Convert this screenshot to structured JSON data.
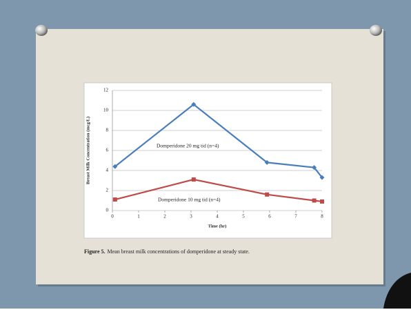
{
  "chart_data": {
    "type": "line",
    "x": [
      0.1,
      3.1,
      5.9,
      7.7,
      8
    ],
    "series": [
      {
        "name": "Domperidone 20 mg tid (n=4)",
        "color": "#4a7ebb",
        "marker": "diamond",
        "values": [
          4.4,
          10.6,
          4.8,
          4.3,
          3.3
        ]
      },
      {
        "name": "Domperidone 10 mg tid (n=4)",
        "color": "#be4b48",
        "marker": "square",
        "values": [
          1.1,
          3.1,
          1.6,
          1.0,
          0.9
        ]
      }
    ],
    "xlabel": "Time (hr)",
    "ylabel": "Breast Milk Concentration (mcg/L)",
    "xlim": [
      0,
      8
    ],
    "xticks": [
      0,
      1,
      2,
      3,
      4,
      5,
      6,
      7,
      8
    ],
    "ylim": [
      0,
      12
    ],
    "yticks": [
      0,
      2,
      4,
      6,
      8,
      10,
      12
    ],
    "grid": true,
    "caption_label": "Figure 5.",
    "caption_text": "Mean breast milk concentrations of domperidone at steady state."
  }
}
